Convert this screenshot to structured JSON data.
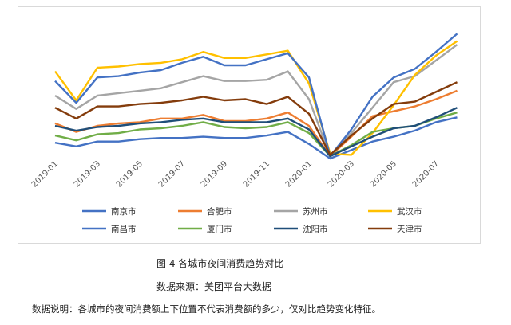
{
  "chart_data": {
    "type": "line",
    "x": [
      "2019-01",
      "2019-02",
      "2019-03",
      "2019-04",
      "2019-05",
      "2019-06",
      "2019-07",
      "2019-08",
      "2019-09",
      "2019-10",
      "2019-11",
      "2019-12",
      "2020-01",
      "2020-02",
      "2020-03",
      "2020-04",
      "2020-05",
      "2020-06",
      "2020-07",
      "2020-08"
    ],
    "tick_labels": [
      "2019-01",
      "2019-03",
      "2019-05",
      "2019-07",
      "2019-09",
      "2019-11",
      "2020-01",
      "2020-03",
      "2020-05",
      "2020-07"
    ],
    "ylim": [
      0,
      100
    ],
    "grid": false,
    "legend_position": "bottom",
    "series": [
      {
        "name": "南京市",
        "color": "#4472C4",
        "values": [
          13,
          10,
          14,
          14,
          16,
          17,
          17,
          18,
          17,
          17,
          19,
          22,
          12,
          0,
          7,
          14,
          18,
          23,
          30,
          34
        ]
      },
      {
        "name": "合肥市",
        "color": "#ED7D31",
        "values": [
          29,
          22,
          27,
          29,
          30,
          33,
          33,
          36,
          31,
          31,
          33,
          38,
          27,
          2,
          18,
          35,
          39,
          43,
          49,
          56
        ]
      },
      {
        "name": "苏州市",
        "color": "#A5A5A5",
        "values": [
          52,
          41,
          52,
          54,
          56,
          58,
          63,
          68,
          64,
          64,
          65,
          72,
          49,
          2,
          21,
          42,
          63,
          68,
          81,
          94
        ]
      },
      {
        "name": "武汉市",
        "color": "#FFC000",
        "values": [
          72,
          48,
          75,
          76,
          78,
          79,
          82,
          88,
          83,
          83,
          86,
          89,
          62,
          4,
          3,
          21,
          44,
          69,
          85,
          97
        ]
      },
      {
        "name": "南昌市",
        "color": "#4472C4",
        "values": [
          64,
          46,
          67,
          68,
          71,
          73,
          79,
          84,
          77,
          77,
          82,
          87,
          67,
          2,
          24,
          51,
          67,
          74,
          88,
          103
        ]
      },
      {
        "name": "厦门市",
        "color": "#70AD47",
        "values": [
          19,
          15,
          20,
          21,
          24,
          25,
          27,
          30,
          26,
          25,
          26,
          30,
          21,
          2,
          11,
          22,
          25,
          27,
          33,
          38
        ]
      },
      {
        "name": "沈阳市",
        "color": "#1F4E79",
        "values": [
          27,
          23,
          26,
          27,
          29,
          30,
          32,
          33,
          30,
          30,
          30,
          33,
          24,
          2,
          10,
          18,
          25,
          27,
          34,
          42
        ]
      },
      {
        "name": "天津市",
        "color": "#843C0C",
        "values": [
          42,
          33,
          43,
          43,
          45,
          46,
          48,
          51,
          48,
          49,
          45,
          51,
          37,
          3,
          19,
          33,
          45,
          47,
          55,
          63
        ]
      }
    ]
  },
  "caption": {
    "figure": "图 4    各城市夜间消费趋势对比",
    "source": "数据来源：美团平台大数据",
    "note": "数据说明：各城市的夜间消费额上下位置不代表消费额的多少，仅对比趋势变化特征。"
  }
}
